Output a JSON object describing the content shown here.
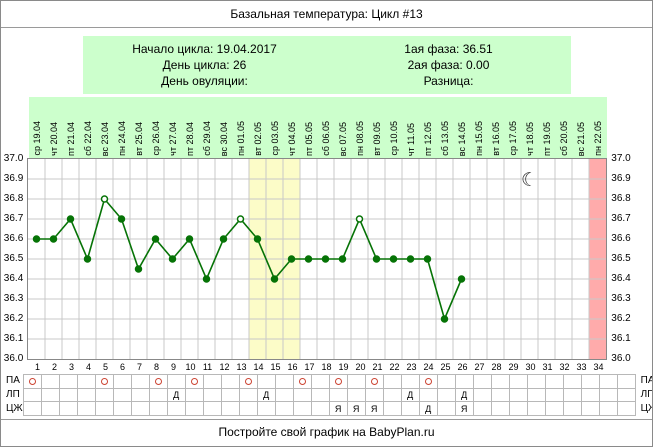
{
  "window": {
    "title": "Базальная температура: Цикл #13"
  },
  "info_panel": {
    "left": [
      "Начало цикла: 19.04.2017",
      "День цикла: 26",
      "День овуляции:"
    ],
    "right": [
      "1ая фаза: 36.51",
      "2ая фаза: 0.00",
      "Разница:"
    ]
  },
  "footer": {
    "text": "Постройте свой график на BabyPlan.ru"
  },
  "chart_data": {
    "type": "line",
    "title": "Базальная температура: Цикл #13",
    "ylim": [
      36.0,
      37.0
    ],
    "ytick_step": 0.1,
    "grid": true,
    "y_tick_labels": [
      "37.0",
      "36.9",
      "36.8",
      "36.7",
      "36.6",
      "36.5",
      "36.4",
      "36.3",
      "36.2",
      "36.1",
      "36.0"
    ],
    "x_tick_labels": [
      "1",
      "2",
      "3",
      "4",
      "5",
      "6",
      "7",
      "8",
      "9",
      "10",
      "11",
      "12",
      "13",
      "14",
      "15",
      "16",
      "17",
      "18",
      "19",
      "20",
      "21",
      "22",
      "23",
      "24",
      "25",
      "26",
      "27",
      "28",
      "29",
      "30",
      "31",
      "32",
      "33",
      "34"
    ],
    "date_labels": [
      "ср 19.04",
      "чт 20.04",
      "пт 21.04",
      "сб 22.04",
      "вс 23.04",
      "пн 24.04",
      "вт 25.04",
      "ср 26.04",
      "чт 27.04",
      "пт 28.04",
      "сб 29.04",
      "вс 30.04",
      "пн 01.05",
      "вт 02.05",
      "ср 03.05",
      "чт 04.05",
      "пт 05.05",
      "сб 06.05",
      "вс 07.05",
      "пн 08.05",
      "вт 09.05",
      "ср 10.05",
      "чт 11.05",
      "пт 12.05",
      "сб 13.05",
      "вс 14.05",
      "пн 15.05",
      "вт 16.05",
      "ср 17.05",
      "чт 18.05",
      "пт 19.05",
      "сб 20.05",
      "вс 21.05",
      "пн 22.05"
    ],
    "temperatures": [
      36.6,
      36.6,
      36.7,
      36.5,
      36.8,
      36.7,
      36.45,
      36.6,
      36.5,
      36.6,
      36.4,
      36.6,
      36.7,
      36.6,
      36.4,
      36.5,
      36.5,
      36.5,
      36.5,
      36.7,
      36.5,
      36.5,
      36.5,
      36.5,
      36.2,
      36.4
    ],
    "open_circle_days": [
      5,
      13,
      20
    ],
    "fertile_band_days": [
      14,
      15,
      16
    ],
    "pink_band_day": 34,
    "moon_marker": {
      "day": 30,
      "temp": 36.9,
      "symbol": "☾"
    },
    "legend_rows": [
      {
        "label": "ПА",
        "marks": {
          "1": "o",
          "5": "o",
          "8": "o",
          "10": "o",
          "13": "o",
          "16": "o",
          "18": "o",
          "20": "o",
          "23": "o"
        }
      },
      {
        "label": "ЛП",
        "marks": {
          "9": "Д",
          "14": "Д",
          "22": "Д",
          "25": "Д"
        }
      },
      {
        "label": "ЦЖ",
        "marks": {
          "18": "Я",
          "19": "Я",
          "20": "Я",
          "23": "Д",
          "25": "Я"
        }
      }
    ],
    "colors": {
      "line": "#067306",
      "grid": "#c9c9c9",
      "plot_border": "#888888",
      "fertile_band": "#fcfcc8",
      "pink_band": "#ffabab",
      "panel_green": "#ccffcc",
      "mark_circle": "#cc4433",
      "moon": "#333333"
    }
  }
}
